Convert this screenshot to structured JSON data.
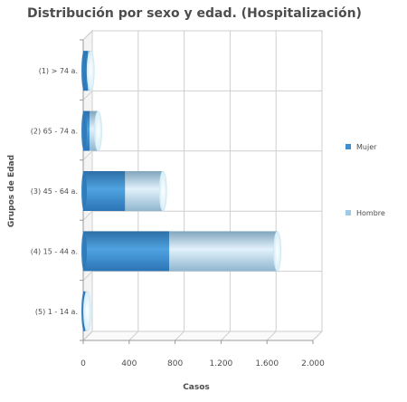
{
  "chart_data": {
    "type": "bar",
    "orientation": "horizontal",
    "stacked": true,
    "title": "Distribución por sexo y edad. (Hospitalización)",
    "xlabel": "Casos",
    "ylabel": "Grupos de Edad",
    "categories": [
      "(1) > 74 a.",
      "(2) 65 - 74 a.",
      "(3) 45 - 64 a.",
      "(4) 15 - 44 a.",
      "(5) 1 - 14 a."
    ],
    "series": [
      {
        "name": "Mujer",
        "values": [
          40,
          55,
          365,
          750,
          15
        ],
        "color": "#3d8fd1"
      },
      {
        "name": "Hombre",
        "values": [
          25,
          75,
          330,
          940,
          20
        ],
        "color": "#9ccbe8"
      }
    ],
    "xlim": [
      0,
      2000
    ],
    "xticks": [
      0,
      400,
      800,
      1200,
      1600,
      2000
    ],
    "xtick_labels": [
      "0",
      "400",
      "800",
      "1.200",
      "1.600",
      "2.000"
    ],
    "grid": true,
    "legend_position": "right"
  }
}
